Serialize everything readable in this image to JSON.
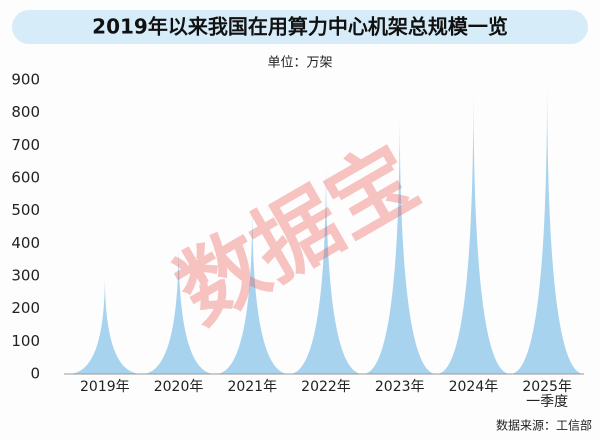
{
  "chart_data": {
    "type": "spike",
    "title": "2019年以来我国在用算力中心机架总规模一览",
    "subtitle": "单位：万架",
    "source": "数据来源：工信部",
    "watermark": "数据宝",
    "categories": [
      "2019年",
      "2020年",
      "2021年",
      "2022年",
      "2023年",
      "2024年",
      "2025年\n一季度"
    ],
    "values": [
      300,
      400,
      520,
      650,
      810,
      880,
      900
    ],
    "color": "#a8d3ee",
    "ylim": [
      0,
      900
    ],
    "yticks": [
      0,
      100,
      200,
      300,
      400,
      500,
      600,
      700,
      800,
      900
    ]
  }
}
